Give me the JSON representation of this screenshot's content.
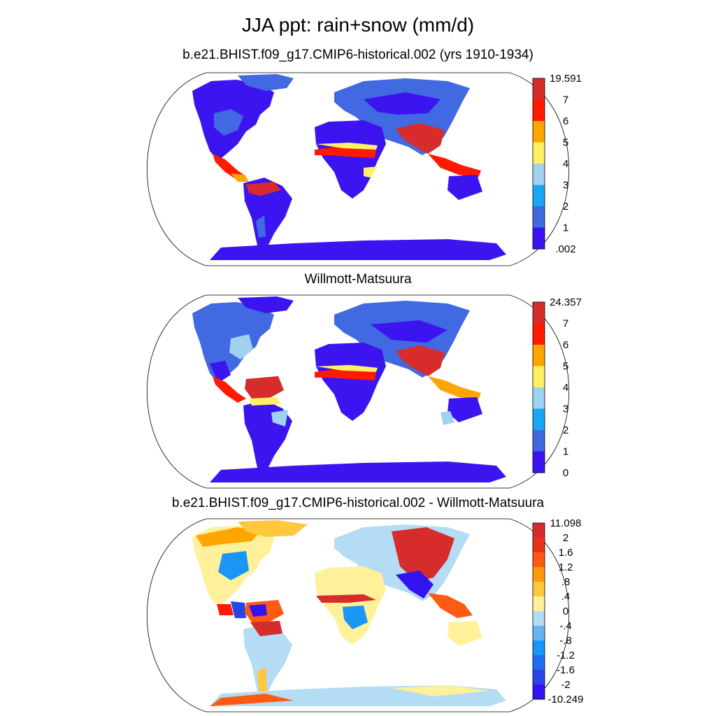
{
  "figure": {
    "title": "JJA ppt: rain+snow (mm/d)"
  },
  "panels": [
    {
      "title": "b.e21.BHIST.f09_g17.CMIP6-historical.002 (yrs 1910-1934)",
      "colorbar": {
        "labels": [
          "19.591",
          "7",
          "6",
          "5",
          "4",
          "3",
          "2",
          "1",
          ".002"
        ],
        "colors": [
          "#d62c2c",
          "#ff1a00",
          "#ffa500",
          "#fff066",
          "#9ed2ee",
          "#1aa6f5",
          "#4169e1",
          "#3c14f0"
        ]
      }
    },
    {
      "title": "Willmott-Matsuura",
      "colorbar": {
        "labels": [
          "24.357",
          "7",
          "6",
          "5",
          "4",
          "3",
          "2",
          "1",
          "0"
        ],
        "colors": [
          "#d62c2c",
          "#ff1a00",
          "#ffa500",
          "#fff066",
          "#9ed2ee",
          "#1aa6f5",
          "#4169e1",
          "#3c14f0"
        ]
      }
    },
    {
      "title": "b.e21.BHIST.f09_g17.CMIP6-historical.002 - Willmott-Matsuura",
      "colorbar": {
        "labels": [
          "11.098",
          "2",
          "1.6",
          "1.2",
          ".8",
          ".4",
          "0",
          "-.4",
          "-.8",
          "-1.2",
          "-1.6",
          "-2",
          "-10.249"
        ],
        "colors": [
          "#d62c2c",
          "#e8331a",
          "#ff5a14",
          "#ff9a10",
          "#ffc83c",
          "#fff09a",
          "#b4dcf4",
          "#64b4f0",
          "#1a96f5",
          "#1e6ef0",
          "#2846e6",
          "#3214f0"
        ]
      }
    }
  ]
}
